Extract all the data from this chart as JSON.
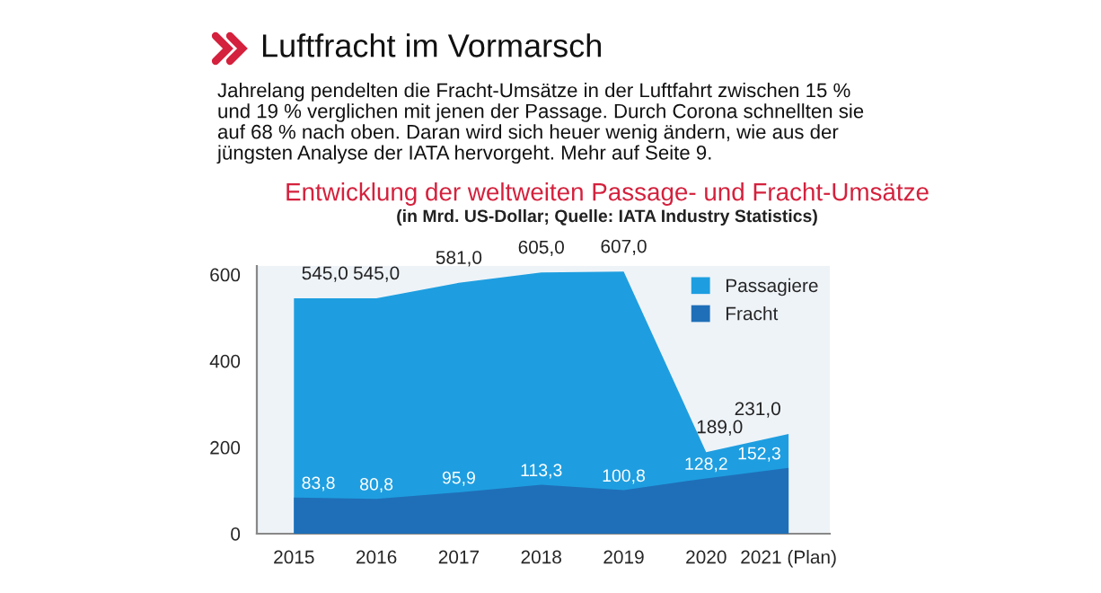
{
  "chart_data": {
    "type": "area",
    "title": "Entwicklung der weltweiten Passage- und Fracht-Umsätze",
    "subtitle": "(in Mrd. US-Dollar; Quelle: IATA Industry Statistics)",
    "annotations": [
      "Luftfracht im Vormarsch",
      "Jahrelang pendelten die Fracht-Umsätze in der Luftfahrt zwischen 15 %\nund 19 % verglichen mit jenen der Passage. Durch Corona schnellten sie\nauf 68 % nach oben. Daran wird sich heuer wenig ändern, wie aus der\njüngsten Analyse der IATA hervorgeht. Mehr auf Seite 9."
    ],
    "categories": [
      "2015",
      "2016",
      "2017",
      "2018",
      "2019",
      "2020",
      "2021 (Plan)"
    ],
    "series": [
      {
        "name": "Passagiere",
        "color": "#1e9ee0",
        "values": [
          545.0,
          545.0,
          581.0,
          605.0,
          607.0,
          189.0,
          231.0
        ],
        "value_labels": [
          "545,0",
          "545,0",
          "581,0",
          "605,0",
          "607,0",
          "189,0",
          "231,0"
        ]
      },
      {
        "name": "Fracht",
        "color": "#1f6fb8",
        "values": [
          83.8,
          80.8,
          95.9,
          113.3,
          100.8,
          128.2,
          152.3
        ],
        "value_labels": [
          "83,8",
          "80,8",
          "95,9",
          "113,3",
          "100,8",
          "128,2",
          "152,3"
        ]
      }
    ],
    "ylim": [
      0,
      620
    ],
    "yticks": [
      0,
      200,
      400,
      600
    ],
    "grid": false,
    "legend": "top right"
  }
}
